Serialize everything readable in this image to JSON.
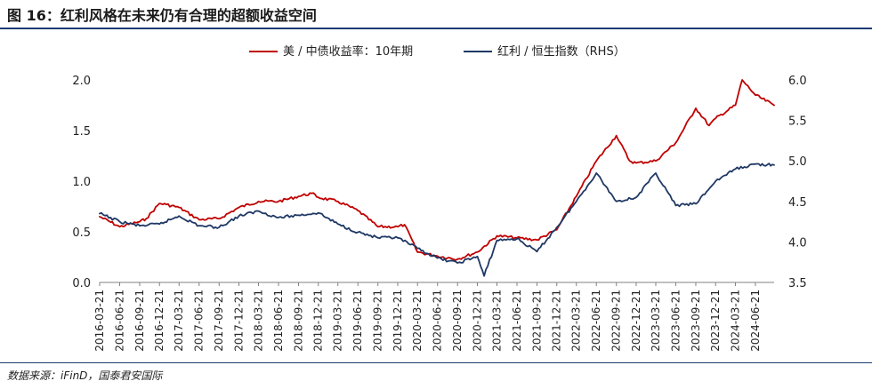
{
  "figure": {
    "title": "图 16：红利风格在未来仍有合理的超额收益空间",
    "source": "数据来源：iFinD，国泰君安国际"
  },
  "chart_data": {
    "type": "line",
    "legend_position": "top",
    "grid": false,
    "x_ticks": [
      "2016-03-21",
      "2016-06-21",
      "2016-09-21",
      "2016-12-21",
      "2017-03-21",
      "2017-06-21",
      "2017-09-21",
      "2017-12-21",
      "2018-03-21",
      "2018-06-21",
      "2018-09-21",
      "2018-12-21",
      "2019-03-21",
      "2019-06-21",
      "2019-09-21",
      "2019-12-21",
      "2020-03-21",
      "2020-06-21",
      "2020-09-21",
      "2020-12-21",
      "2021-03-21",
      "2021-06-21",
      "2021-09-21",
      "2021-12-21",
      "2022-03-21",
      "2022-06-21",
      "2022-09-21",
      "2022-12-21",
      "2023-03-21",
      "2023-06-21",
      "2023-09-21",
      "2023-12-21",
      "2024-03-21",
      "2024-06-21"
    ],
    "y_left": {
      "lim": [
        0,
        2.0
      ],
      "ticks": [
        "0.0",
        "0.5",
        "1.0",
        "1.5",
        "2.0"
      ]
    },
    "y_right": {
      "lim": [
        3.5,
        6.0
      ],
      "ticks": [
        "3.5",
        "4.0",
        "4.5",
        "5.0",
        "5.5",
        "6.0"
      ]
    },
    "x_range": [
      "2016-03-21",
      "2024-09-15"
    ],
    "series": [
      {
        "name": "美 / 中债收益率：10年期",
        "axis": "left",
        "color": "#c00000",
        "points": [
          [
            "2016-03-21",
            0.65
          ],
          [
            "2016-06-21",
            0.55
          ],
          [
            "2016-09-21",
            0.6
          ],
          [
            "2016-10-21",
            0.63
          ],
          [
            "2016-12-21",
            0.78
          ],
          [
            "2017-01-21",
            0.77
          ],
          [
            "2017-03-21",
            0.74
          ],
          [
            "2017-06-21",
            0.62
          ],
          [
            "2017-09-21",
            0.63
          ],
          [
            "2017-12-21",
            0.74
          ],
          [
            "2018-03-21",
            0.8
          ],
          [
            "2018-06-21",
            0.8
          ],
          [
            "2018-09-21",
            0.85
          ],
          [
            "2018-11-21",
            0.88
          ],
          [
            "2018-12-21",
            0.84
          ],
          [
            "2019-03-21",
            0.8
          ],
          [
            "2019-06-21",
            0.71
          ],
          [
            "2019-09-21",
            0.55
          ],
          [
            "2019-12-21",
            0.55
          ],
          [
            "2020-01-21",
            0.57
          ],
          [
            "2020-03-21",
            0.3
          ],
          [
            "2020-06-21",
            0.26
          ],
          [
            "2020-09-21",
            0.23
          ],
          [
            "2020-12-21",
            0.3
          ],
          [
            "2021-03-21",
            0.46
          ],
          [
            "2021-06-21",
            0.44
          ],
          [
            "2021-09-21",
            0.42
          ],
          [
            "2021-12-21",
            0.52
          ],
          [
            "2022-03-21",
            0.85
          ],
          [
            "2022-06-21",
            1.2
          ],
          [
            "2022-09-21",
            1.45
          ],
          [
            "2022-11-21",
            1.2
          ],
          [
            "2022-12-21",
            1.18
          ],
          [
            "2023-03-21",
            1.2
          ],
          [
            "2023-06-21",
            1.38
          ],
          [
            "2023-09-21",
            1.72
          ],
          [
            "2023-11-21",
            1.55
          ],
          [
            "2023-12-21",
            1.62
          ],
          [
            "2024-03-21",
            1.75
          ],
          [
            "2024-04-21",
            2.0
          ],
          [
            "2024-06-21",
            1.85
          ],
          [
            "2024-09-15",
            1.75
          ]
        ]
      },
      {
        "name": "红利 / 恒生指数（RHS）",
        "axis": "right",
        "color": "#1f3864",
        "points": [
          [
            "2016-03-21",
            4.35
          ],
          [
            "2016-06-21",
            4.25
          ],
          [
            "2016-09-21",
            4.2
          ],
          [
            "2016-12-21",
            4.22
          ],
          [
            "2017-03-21",
            4.32
          ],
          [
            "2017-06-21",
            4.2
          ],
          [
            "2017-09-21",
            4.18
          ],
          [
            "2017-12-21",
            4.32
          ],
          [
            "2018-03-21",
            4.38
          ],
          [
            "2018-06-21",
            4.3
          ],
          [
            "2018-09-21",
            4.33
          ],
          [
            "2018-12-21",
            4.36
          ],
          [
            "2019-03-21",
            4.22
          ],
          [
            "2019-06-21",
            4.12
          ],
          [
            "2019-09-21",
            4.05
          ],
          [
            "2019-12-21",
            4.05
          ],
          [
            "2020-03-21",
            3.92
          ],
          [
            "2020-06-21",
            3.8
          ],
          [
            "2020-09-21",
            3.74
          ],
          [
            "2020-12-21",
            3.82
          ],
          [
            "2021-01-21",
            3.58
          ],
          [
            "2021-03-21",
            4.02
          ],
          [
            "2021-06-21",
            4.04
          ],
          [
            "2021-09-21",
            3.88
          ],
          [
            "2021-12-21",
            4.18
          ],
          [
            "2022-03-21",
            4.5
          ],
          [
            "2022-06-21",
            4.85
          ],
          [
            "2022-09-21",
            4.5
          ],
          [
            "2022-12-21",
            4.55
          ],
          [
            "2023-03-21",
            4.85
          ],
          [
            "2023-06-21",
            4.45
          ],
          [
            "2023-09-21",
            4.47
          ],
          [
            "2023-12-21",
            4.75
          ],
          [
            "2024-03-21",
            4.9
          ],
          [
            "2024-06-21",
            4.96
          ],
          [
            "2024-09-15",
            4.95
          ]
        ]
      }
    ]
  }
}
